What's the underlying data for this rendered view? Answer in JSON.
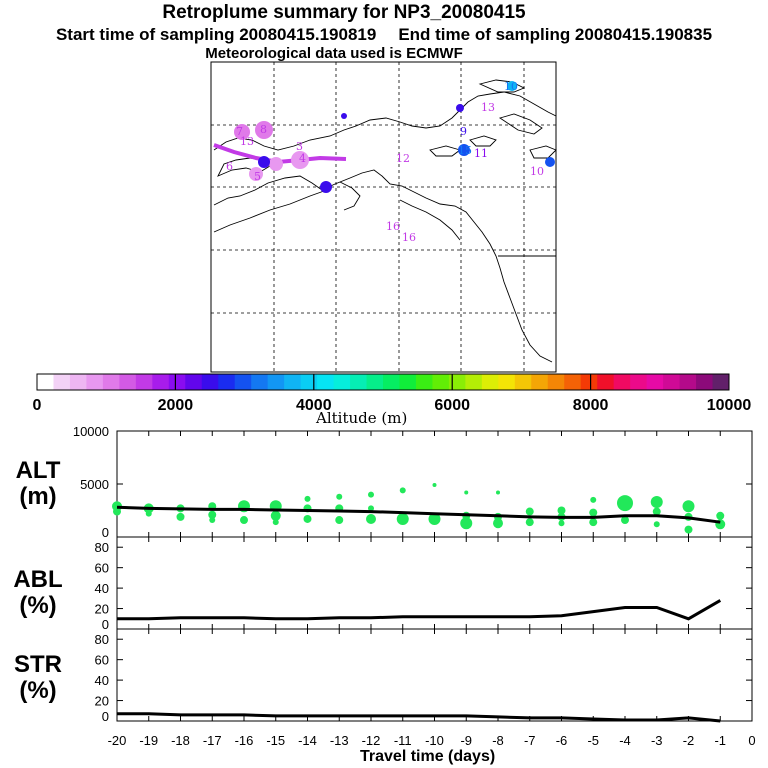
{
  "header": {
    "title": "Retroplume summary for NP3_20080415",
    "start_label": "Start time of sampling 20080415.190819",
    "end_label": "End time of sampling 20080415.190835",
    "met_label": "Meteorological data used is ECMWF"
  },
  "colorbar": {
    "tick_labels": [
      "0",
      "2000",
      "4000",
      "6000",
      "8000",
      "10000"
    ],
    "title": "Altitude (m)",
    "colors": [
      "#ffffff",
      "#f3d2f6",
      "#eeb6f3",
      "#e898f0",
      "#e07ae9",
      "#d35ae5",
      "#c23ae6",
      "#a81ceb",
      "#8a0cf0",
      "#6206ec",
      "#3a0cec",
      "#1a2cf0",
      "#1452f0",
      "#1478f2",
      "#1296f4",
      "#10b4f4",
      "#0acef4",
      "#06e4f4",
      "#06eedc",
      "#06eeb4",
      "#06ee8a",
      "#06ee62",
      "#10ee3a",
      "#3aee14",
      "#62ee06",
      "#8aee06",
      "#b4ee06",
      "#dcee06",
      "#f4e406",
      "#f4c606",
      "#f4a606",
      "#f48606",
      "#f46206",
      "#f43a06",
      "#f0102a",
      "#f00a62",
      "#ec0a8a",
      "#e60aa6",
      "#d00a96",
      "#b40a8a",
      "#8c0a7a",
      "#62206a"
    ]
  },
  "map": {
    "trajectory_labels": [
      {
        "text": "3",
        "color": "#c23ae6"
      },
      {
        "text": "4",
        "color": "#c23ae6"
      },
      {
        "text": "5",
        "color": "#c23ae6"
      },
      {
        "text": "6",
        "color": "#c23ae6"
      },
      {
        "text": "7",
        "color": "#c23ae6"
      },
      {
        "text": "8",
        "color": "#c23ae6"
      },
      {
        "text": "9",
        "color": "#3a0cec"
      },
      {
        "text": "10",
        "color": "#1478f2"
      },
      {
        "text": "10",
        "color": "#c23ae6"
      },
      {
        "text": "11",
        "color": "#8a0cf0"
      },
      {
        "text": "12",
        "color": "#c23ae6"
      },
      {
        "text": "13",
        "color": "#c23ae6"
      },
      {
        "text": "13",
        "color": "#c23ae6"
      },
      {
        "text": "15",
        "color": "#1478f2"
      },
      {
        "text": "16",
        "color": "#c23ae6"
      },
      {
        "text": "16",
        "color": "#c23ae6"
      }
    ]
  },
  "panels": {
    "alt": {
      "label_line1": "ALT",
      "label_line2": "(m)",
      "yticks": [
        "0",
        "5000",
        "10000"
      ]
    },
    "abl": {
      "label_line1": "ABL",
      "label_line2": "(%)",
      "yticks": [
        "0",
        "20",
        "40",
        "60",
        "80"
      ]
    },
    "str": {
      "label_line1": "STR",
      "label_line2": "(%)",
      "yticks": [
        "0",
        "20",
        "40",
        "60",
        "80"
      ]
    }
  },
  "x_axis": {
    "title": "Travel time (days)",
    "tick_labels": [
      "-20",
      "-19",
      "-18",
      "-17",
      "-16",
      "-15",
      "-14",
      "-13",
      "-12",
      "-11",
      "-10",
      "-9",
      "-8",
      "-7",
      "-6",
      "-5",
      "-4",
      "-3",
      "-2",
      "-1",
      "0"
    ]
  },
  "chart_data": [
    {
      "type": "line",
      "title": "ALT",
      "xlabel": "Travel time (days)",
      "ylabel": "ALT (m)",
      "xlim": [
        -20,
        0
      ],
      "ylim": [
        0,
        10000
      ],
      "x": [
        -20,
        -19,
        -18,
        -17,
        -16,
        -15,
        -14,
        -13,
        -12,
        -11,
        -10,
        -9,
        -8,
        -7,
        -6,
        -5,
        -4,
        -3,
        -2,
        -1
      ],
      "series": [
        {
          "name": "mean altitude",
          "values": [
            2800,
            2700,
            2650,
            2600,
            2600,
            2550,
            2500,
            2450,
            2400,
            2300,
            2200,
            2100,
            2000,
            1900,
            1850,
            1850,
            2000,
            2000,
            1800,
            1400
          ],
          "color": "#000000"
        }
      ],
      "scatter": {
        "color": "#22e85a",
        "points": [
          {
            "x": -20,
            "y": 2900,
            "s": 5
          },
          {
            "x": -20,
            "y": 2400,
            "s": 4
          },
          {
            "x": -19,
            "y": 2700,
            "s": 5
          },
          {
            "x": -19,
            "y": 2200,
            "s": 3
          },
          {
            "x": -18,
            "y": 2700,
            "s": 4
          },
          {
            "x": -18,
            "y": 1900,
            "s": 4
          },
          {
            "x": -17,
            "y": 2900,
            "s": 4
          },
          {
            "x": -17,
            "y": 2100,
            "s": 4
          },
          {
            "x": -17,
            "y": 1600,
            "s": 3
          },
          {
            "x": -16,
            "y": 2900,
            "s": 6
          },
          {
            "x": -16,
            "y": 1600,
            "s": 4
          },
          {
            "x": -15,
            "y": 2900,
            "s": 6
          },
          {
            "x": -15,
            "y": 2000,
            "s": 5
          },
          {
            "x": -15,
            "y": 1400,
            "s": 3
          },
          {
            "x": -14,
            "y": 3600,
            "s": 3
          },
          {
            "x": -14,
            "y": 2700,
            "s": 4
          },
          {
            "x": -14,
            "y": 1700,
            "s": 4
          },
          {
            "x": -13,
            "y": 3800,
            "s": 3
          },
          {
            "x": -13,
            "y": 2700,
            "s": 4
          },
          {
            "x": -13,
            "y": 1600,
            "s": 4
          },
          {
            "x": -12,
            "y": 4000,
            "s": 3
          },
          {
            "x": -12,
            "y": 2700,
            "s": 3
          },
          {
            "x": -12,
            "y": 1700,
            "s": 5
          },
          {
            "x": -11,
            "y": 4400,
            "s": 3
          },
          {
            "x": -11,
            "y": 1700,
            "s": 6
          },
          {
            "x": -10,
            "y": 4900,
            "s": 2
          },
          {
            "x": -10,
            "y": 1700,
            "s": 6
          },
          {
            "x": -9,
            "y": 4200,
            "s": 2
          },
          {
            "x": -9,
            "y": 2000,
            "s": 4
          },
          {
            "x": -9,
            "y": 1300,
            "s": 6
          },
          {
            "x": -8,
            "y": 4200,
            "s": 2
          },
          {
            "x": -8,
            "y": 1900,
            "s": 4
          },
          {
            "x": -8,
            "y": 1300,
            "s": 5
          },
          {
            "x": -7,
            "y": 2400,
            "s": 4
          },
          {
            "x": -7,
            "y": 1400,
            "s": 4
          },
          {
            "x": -6,
            "y": 2500,
            "s": 4
          },
          {
            "x": -6,
            "y": 1900,
            "s": 4
          },
          {
            "x": -6,
            "y": 1300,
            "s": 3
          },
          {
            "x": -5,
            "y": 3500,
            "s": 3
          },
          {
            "x": -5,
            "y": 2300,
            "s": 4
          },
          {
            "x": -5,
            "y": 1400,
            "s": 4
          },
          {
            "x": -4,
            "y": 3200,
            "s": 8
          },
          {
            "x": -4,
            "y": 1600,
            "s": 4
          },
          {
            "x": -3,
            "y": 3300,
            "s": 6
          },
          {
            "x": -3,
            "y": 2400,
            "s": 4
          },
          {
            "x": -3,
            "y": 1200,
            "s": 3
          },
          {
            "x": -2,
            "y": 2900,
            "s": 6
          },
          {
            "x": -2,
            "y": 1900,
            "s": 4
          },
          {
            "x": -2,
            "y": 700,
            "s": 4
          },
          {
            "x": -1,
            "y": 2000,
            "s": 4
          },
          {
            "x": -1,
            "y": 1200,
            "s": 5
          }
        ]
      }
    },
    {
      "type": "line",
      "title": "ABL",
      "xlabel": "Travel time (days)",
      "ylabel": "ABL (%)",
      "xlim": [
        -20,
        0
      ],
      "ylim": [
        0,
        90
      ],
      "x": [
        -20,
        -19,
        -18,
        -17,
        -16,
        -15,
        -14,
        -13,
        -12,
        -11,
        -10,
        -9,
        -8,
        -7,
        -6,
        -5,
        -4,
        -3,
        -2,
        -1
      ],
      "series": [
        {
          "name": "ABL fraction",
          "values": [
            10,
            10,
            11,
            11,
            11,
            10,
            10,
            11,
            11,
            12,
            12,
            12,
            12,
            12,
            13,
            17,
            21,
            21,
            10,
            28
          ],
          "color": "#000000"
        }
      ]
    },
    {
      "type": "line",
      "title": "STR",
      "xlabel": "Travel time (days)",
      "ylabel": "STR (%)",
      "xlim": [
        -20,
        0
      ],
      "ylim": [
        0,
        90
      ],
      "x": [
        -20,
        -19,
        -18,
        -17,
        -16,
        -15,
        -14,
        -13,
        -12,
        -11,
        -10,
        -9,
        -8,
        -7,
        -6,
        -5,
        -4,
        -3,
        -2,
        -1
      ],
      "series": [
        {
          "name": "STR fraction",
          "values": [
            7,
            7,
            6,
            6,
            6,
            5,
            5,
            5,
            5,
            5,
            5,
            5,
            4,
            3,
            3,
            2,
            1,
            1,
            3,
            0
          ],
          "color": "#000000"
        }
      ]
    }
  ]
}
